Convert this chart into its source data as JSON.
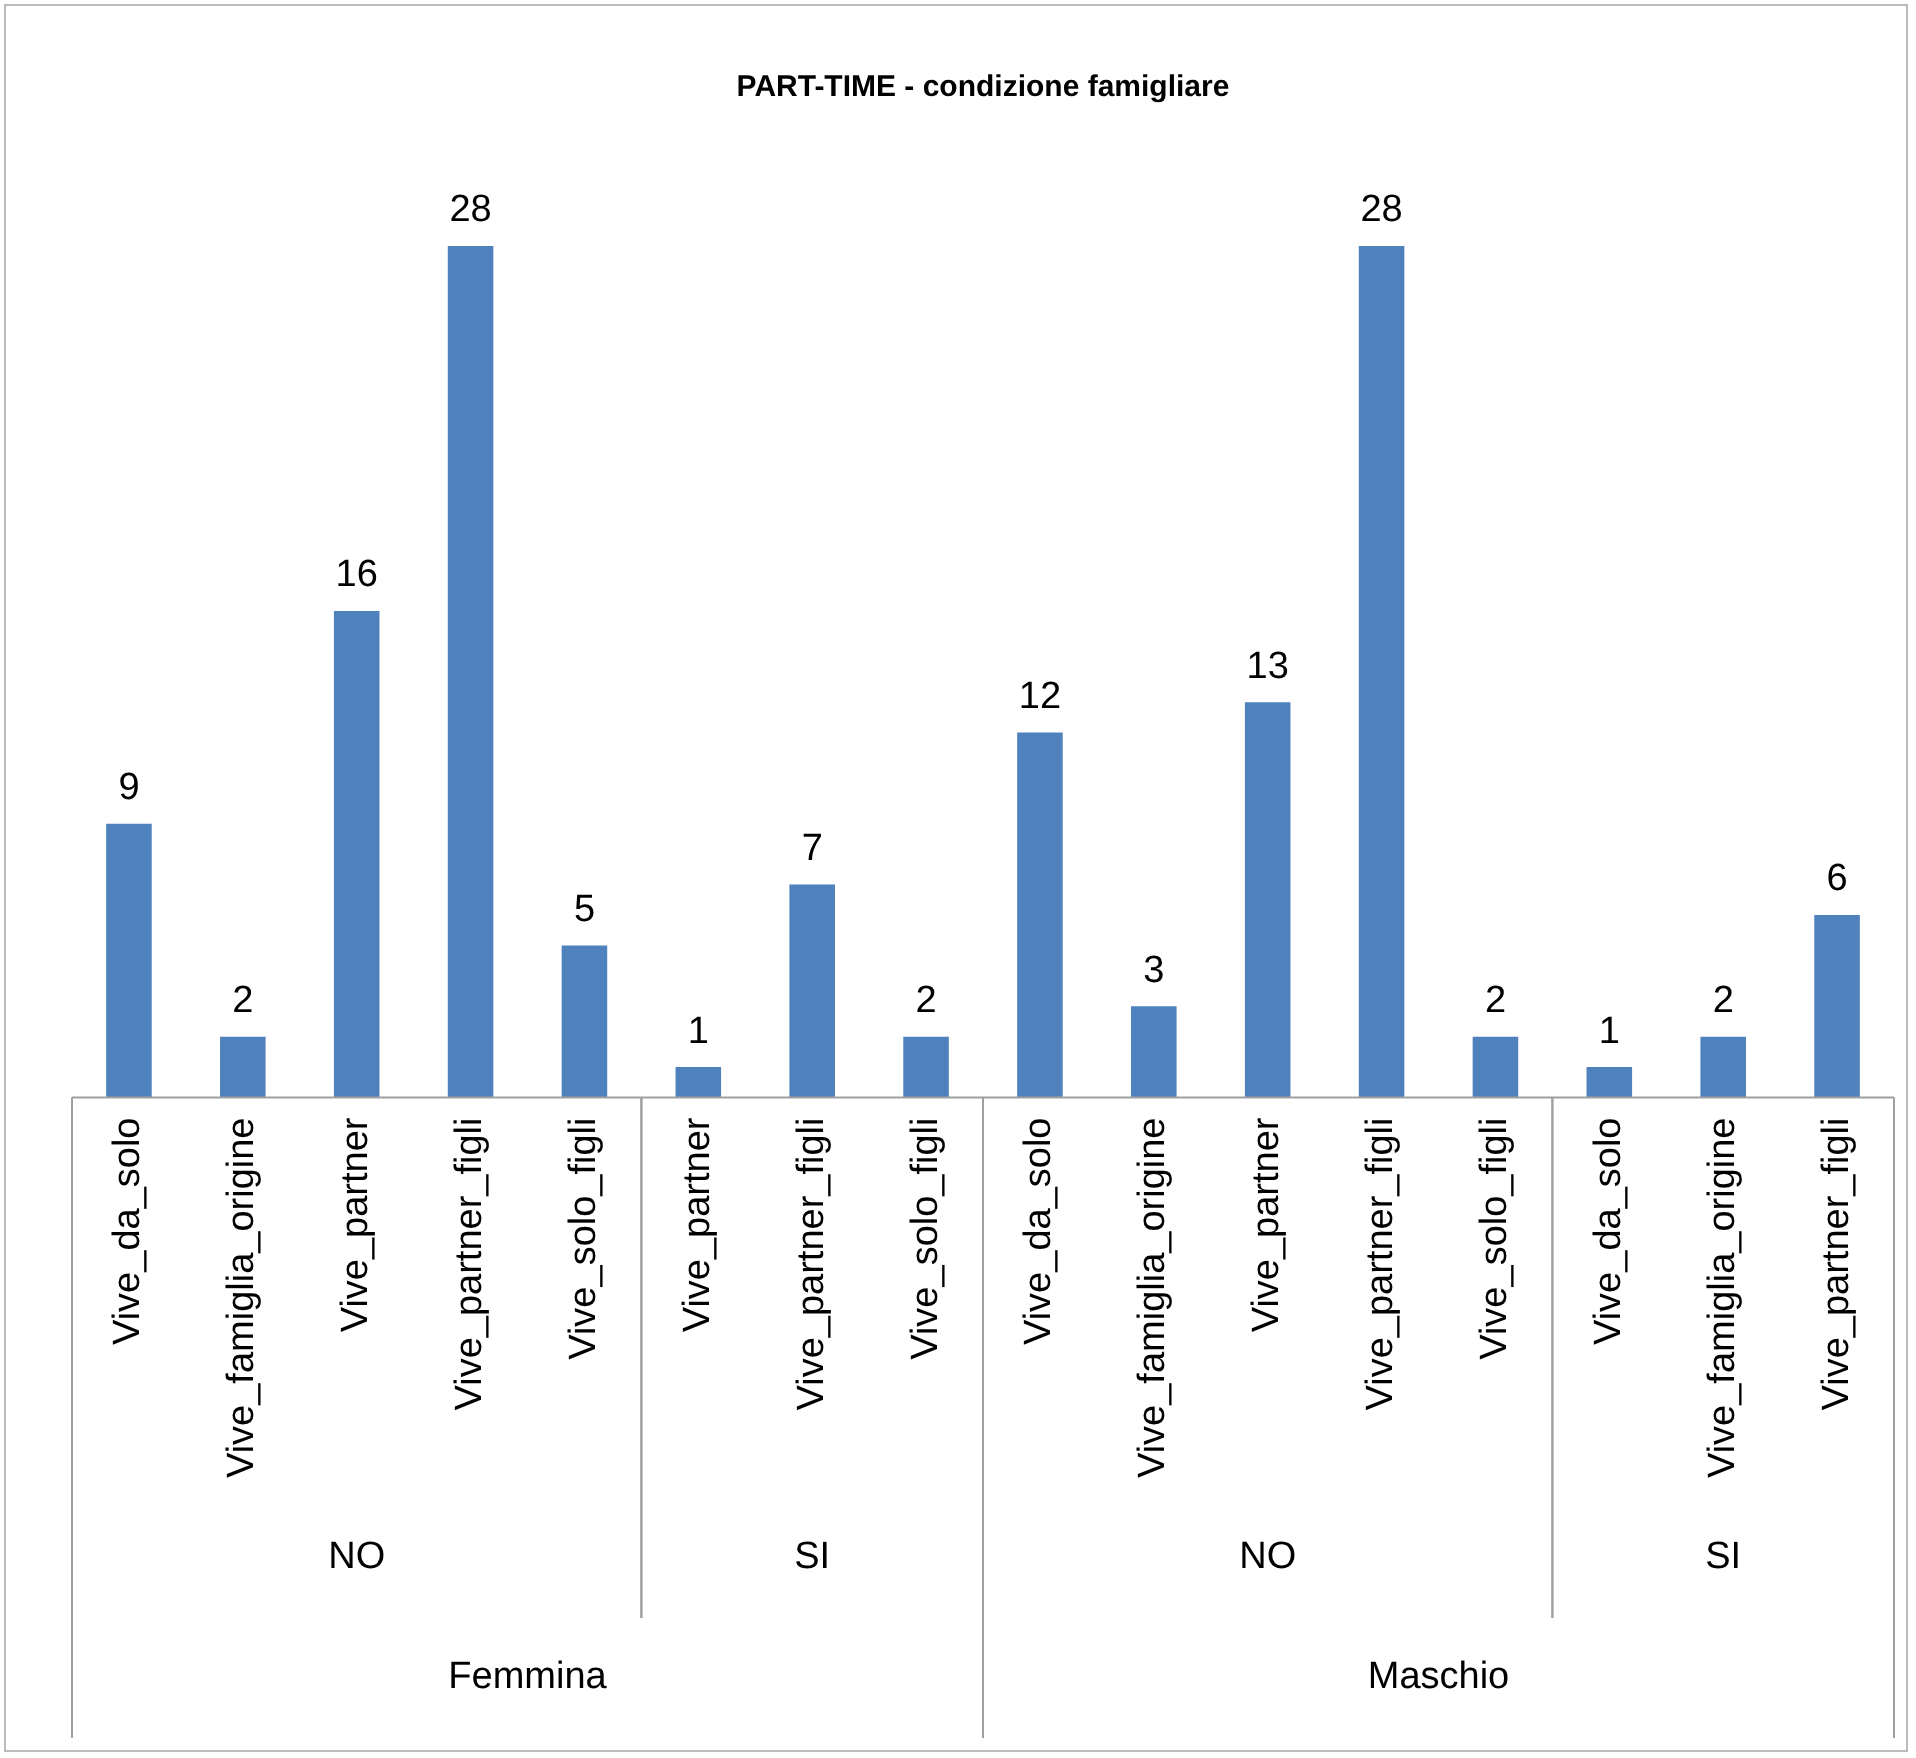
{
  "chart_data": {
    "type": "bar",
    "title": "PART-TIME - condizione famigliare",
    "categories": [
      "Vive_da_solo",
      "Vive_famiglia_origine",
      "Vive_partner",
      "Vive_partner_figli",
      "Vive_solo_figli",
      "Vive_partner",
      "Vive_partner_figli",
      "Vive_solo_figli",
      "Vive_da_solo",
      "Vive_famiglia_origine",
      "Vive_partner",
      "Vive_partner_figli",
      "Vive_solo_figli",
      "Vive_da_solo",
      "Vive_famiglia_origine",
      "Vive_partner_figli"
    ],
    "values": [
      9,
      2,
      16,
      28,
      5,
      1,
      7,
      2,
      12,
      3,
      13,
      28,
      2,
      1,
      2,
      6
    ],
    "color": "#4f81bd",
    "data_labels": true,
    "tick_labels": "x",
    "grid": false,
    "legend": false,
    "annotations": [
      "NO",
      "SI",
      "NO",
      "SI",
      "Femmina",
      "Maschio"
    ]
  }
}
